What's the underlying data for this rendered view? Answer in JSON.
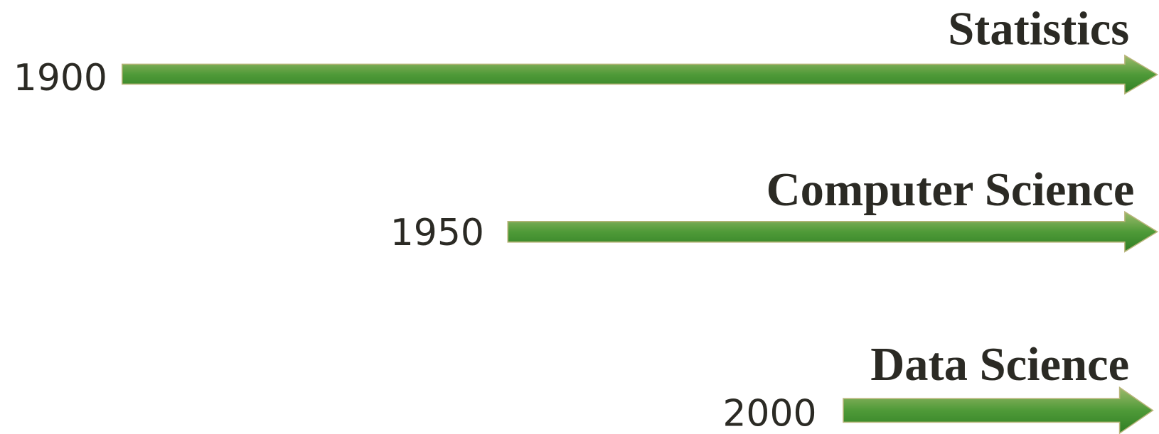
{
  "rows": [
    {
      "year": "1900",
      "label": "Statistics"
    },
    {
      "year": "1950",
      "label": "Computer Science"
    },
    {
      "year": "2000",
      "label": "Data Science"
    }
  ]
}
